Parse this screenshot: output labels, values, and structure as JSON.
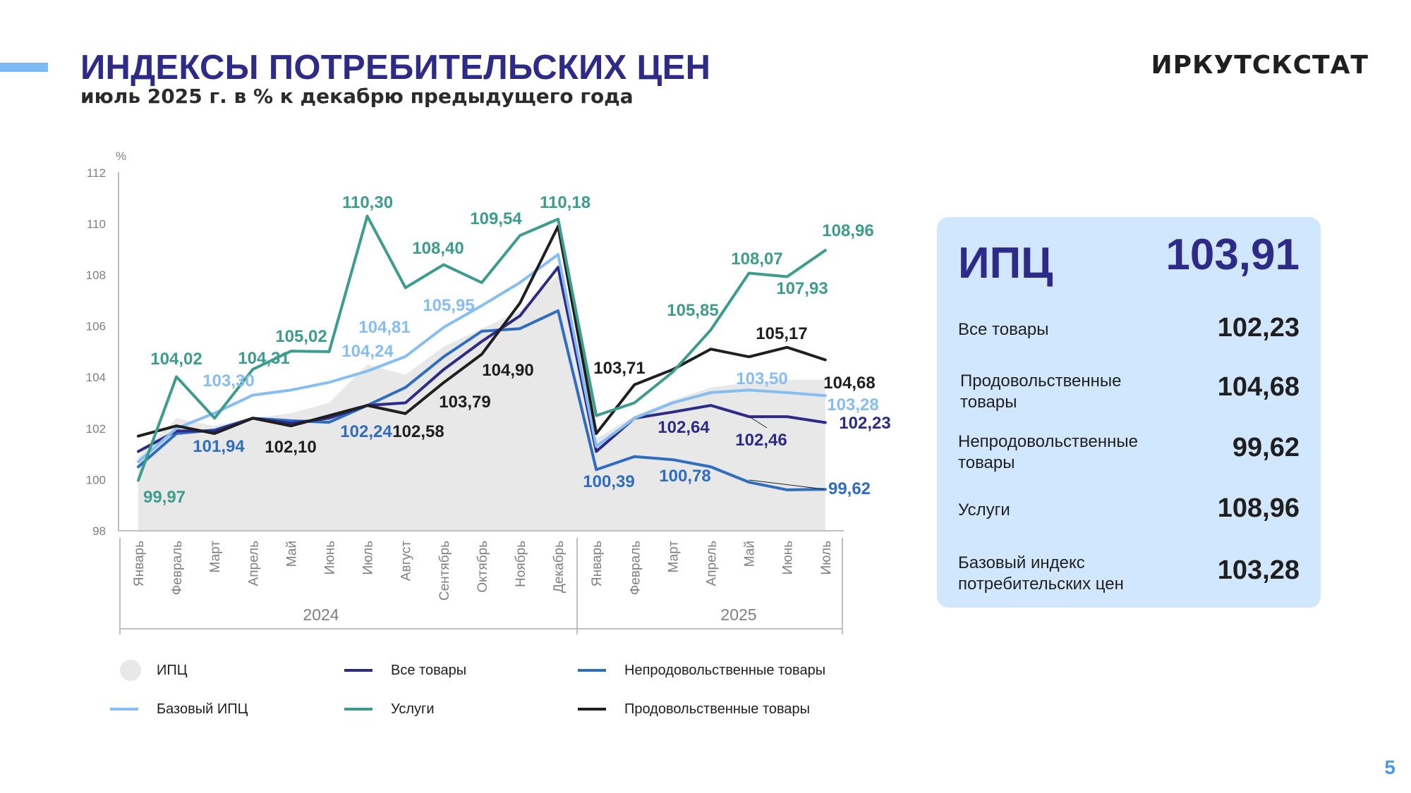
{
  "header": {
    "title": "ИНДЕКСЫ ПОТРЕБИТЕЛЬСКИХ ЦЕН",
    "subtitle": "июль 2025 г. в % к декабрю предыдущего года",
    "brand": "ИРКУТСКСТАТ",
    "page_number": "5"
  },
  "colors": {
    "title": "#2e2a87",
    "accent": "#7cb9f5",
    "panel_bg": "#d1e7fd"
  },
  "chart_data": {
    "type": "line",
    "ylabel": "%",
    "ylim": [
      98,
      112
    ],
    "yticks": [
      "98",
      "100",
      "102",
      "104",
      "106",
      "108",
      "110",
      "112"
    ],
    "categories": [
      "Январь",
      "Февраль",
      "Март",
      "Апрель",
      "Май",
      "Июнь",
      "Июль",
      "Август",
      "Сентябрь",
      "Октябрь",
      "Ноябрь",
      "Декабрь",
      "Январь",
      "Февраль",
      "Март",
      "Апрель",
      "Май",
      "Июнь",
      "Июль"
    ],
    "year_groups": [
      {
        "label": "2024",
        "start": 0,
        "end": 11
      },
      {
        "label": "2025",
        "start": 12,
        "end": 18
      }
    ],
    "series": [
      {
        "name": "ИПЦ",
        "style": "area",
        "color": "#e8e8e8",
        "values": [
          100.9,
          102.4,
          102.1,
          102.4,
          102.6,
          103.0,
          104.5,
          104.1,
          105.2,
          105.9,
          106.6,
          108.0,
          101.6,
          102.5,
          103.1,
          103.6,
          103.8,
          103.9,
          103.9
        ]
      },
      {
        "name": "Все товары",
        "style": "line",
        "color": "#2e2a87",
        "values": [
          101.1,
          101.9,
          101.9,
          102.4,
          102.2,
          102.4,
          102.9,
          103.0,
          104.3,
          105.4,
          106.4,
          108.3,
          101.1,
          102.4,
          102.64,
          102.9,
          102.46,
          102.46,
          102.23
        ]
      },
      {
        "name": "Непродовольственные товары",
        "style": "line",
        "color": "#2e6dbf",
        "values": [
          100.5,
          101.8,
          101.94,
          102.4,
          102.3,
          102.24,
          102.9,
          103.6,
          104.8,
          105.8,
          105.9,
          106.6,
          100.39,
          100.9,
          100.78,
          100.5,
          99.9,
          99.6,
          99.62
        ]
      },
      {
        "name": "Базовый ИПЦ",
        "style": "line",
        "color": "#86bdf2",
        "values": [
          100.7,
          102.0,
          102.6,
          103.3,
          103.5,
          103.8,
          104.24,
          104.81,
          105.95,
          106.8,
          107.7,
          108.8,
          101.3,
          102.4,
          103.0,
          103.4,
          103.5,
          103.4,
          103.28
        ]
      },
      {
        "name": "Услуги",
        "style": "line",
        "color": "#3d9c8d",
        "values": [
          99.97,
          104.02,
          102.4,
          104.31,
          105.02,
          105.0,
          110.3,
          107.5,
          108.4,
          107.7,
          109.54,
          110.18,
          102.5,
          103.0,
          104.2,
          105.85,
          108.07,
          107.93,
          108.96
        ]
      },
      {
        "name": "Продовольственные товары",
        "style": "line",
        "color": "#1f1f1f",
        "values": [
          101.7,
          102.1,
          101.8,
          102.4,
          102.1,
          102.5,
          102.9,
          102.58,
          103.79,
          104.9,
          106.9,
          109.9,
          101.8,
          103.71,
          104.3,
          105.1,
          104.8,
          105.17,
          104.68
        ]
      }
    ],
    "data_labels": [
      {
        "text": "110,30",
        "series": "Услуги"
      },
      {
        "text": "110,18",
        "series": "Услуги"
      },
      {
        "text": "109,54",
        "series": "Услуги"
      },
      {
        "text": "108,40",
        "series": "Услуги"
      },
      {
        "text": "108,96",
        "series": "Услуги"
      },
      {
        "text": "108,07",
        "series": "Услуги"
      },
      {
        "text": "107,93",
        "series": "Услуги"
      },
      {
        "text": "105,85",
        "series": "Услуги"
      },
      {
        "text": "105,02",
        "series": "Услуги"
      },
      {
        "text": "104,31",
        "series": "Услуги"
      },
      {
        "text": "104,02",
        "series": "Услуги"
      },
      {
        "text": "99,97",
        "series": "Услуги"
      },
      {
        "text": "105,95",
        "series": "Базовый ИПЦ"
      },
      {
        "text": "104,81",
        "series": "Базовый ИПЦ"
      },
      {
        "text": "104,24",
        "series": "Базовый ИПЦ"
      },
      {
        "text": "103,30",
        "series": "Базовый ИПЦ"
      },
      {
        "text": "103,50",
        "series": "Базовый ИПЦ"
      },
      {
        "text": "103,28",
        "series": "Базовый ИПЦ"
      },
      {
        "text": "105,17",
        "series": "Продовольственные товары"
      },
      {
        "text": "104,90",
        "series": "Продовольственные товары"
      },
      {
        "text": "104,68",
        "series": "Продовольственные товары"
      },
      {
        "text": "103,79",
        "series": "Продовольственные товары"
      },
      {
        "text": "103,71",
        "series": "Продовольственные товары"
      },
      {
        "text": "102,58",
        "series": "Продовольственные товары"
      },
      {
        "text": "102,10",
        "series": "Продовольственные товары"
      },
      {
        "text": "102,24",
        "series": "Непродовольственные товары"
      },
      {
        "text": "101,94",
        "series": "Непродовольственные товары"
      },
      {
        "text": "100,39",
        "series": "Непродовольственные товары"
      },
      {
        "text": "100,78",
        "series": "Непродовольственные товары"
      },
      {
        "text": "99,62",
        "series": "Непродовольственные товары"
      },
      {
        "text": "102,64",
        "series": "Все товары"
      },
      {
        "text": "102,46",
        "series": "Все товары"
      },
      {
        "text": "102,23",
        "series": "Все товары"
      }
    ],
    "legend_position": "bottom",
    "grid": false
  },
  "legend": [
    {
      "label": "ИПЦ",
      "marker": "circle",
      "color": "#e8e8e8"
    },
    {
      "label": "Все товары",
      "marker": "line",
      "color": "#2e2a87"
    },
    {
      "label": "Непродовольственные товары",
      "marker": "line",
      "color": "#2e6dbf"
    },
    {
      "label": "Базовый ИПЦ",
      "marker": "line",
      "color": "#86bdf2"
    },
    {
      "label": "Услуги",
      "marker": "line",
      "color": "#3d9c8d"
    },
    {
      "label": "Продовольственные товары",
      "marker": "line",
      "color": "#1f1f1f"
    }
  ],
  "panel": {
    "head_label": "ИПЦ",
    "head_value": "103,91",
    "rows": [
      {
        "label": "Все товары",
        "value": "102,23"
      },
      {
        "label": "Продовольственные товары",
        "value": "104,68"
      },
      {
        "label": "Непродовольственные товары",
        "value": "99,62"
      },
      {
        "label": "Услуги",
        "value": "108,96"
      },
      {
        "label": "Базовый индекс потребительских цен",
        "value": "103,28"
      }
    ]
  }
}
